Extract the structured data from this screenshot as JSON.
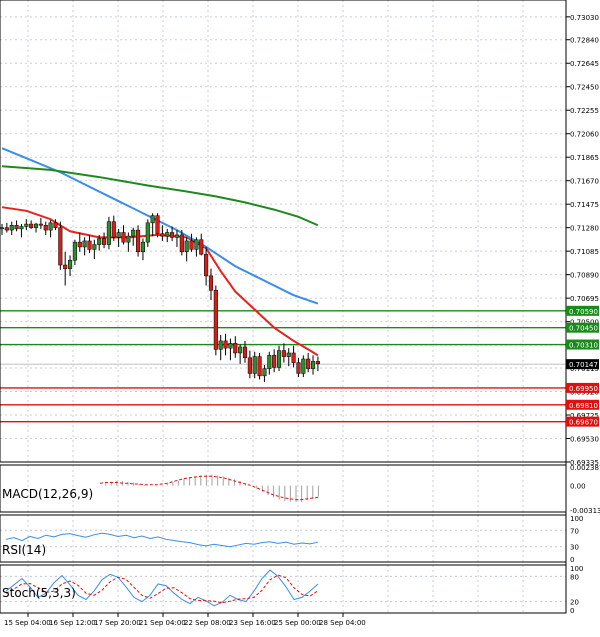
{
  "chart_data": {
    "type": "candlestick",
    "x_ticks": [
      "15 Sep 04:00",
      "16 Sep 12:00",
      "17 Sep 20:00",
      "21 Sep 04:00",
      "22 Sep 08:00",
      "23 Sep 16:00",
      "25 Sep 00:00",
      "28 Sep 04:00"
    ],
    "main": {
      "ylim": [
        0.69335,
        0.7312
      ],
      "y_ticks": [
        "0.73030",
        "0.72840",
        "0.72645",
        "0.72450",
        "0.72255",
        "0.72060",
        "0.71865",
        "0.71670",
        "0.71475",
        "0.71280",
        "0.71085",
        "0.70890",
        "0.70695",
        "0.70500",
        "0.70305",
        "0.70115",
        "0.69920",
        "0.69725",
        "0.69530",
        "0.69335"
      ],
      "current_price": "0.70147",
      "support_levels": [
        "0.69950",
        "0.69810",
        "0.69670"
      ],
      "resistance_levels": [
        "0.70590",
        "0.70450",
        "0.70310"
      ],
      "candles": [
        [
          0.7127,
          0.7131,
          0.7122,
          0.7128
        ],
        [
          0.7128,
          0.7132,
          0.7124,
          0.7126
        ],
        [
          0.7126,
          0.7133,
          0.7122,
          0.713
        ],
        [
          0.713,
          0.7134,
          0.7125,
          0.7127
        ],
        [
          0.7127,
          0.7131,
          0.712,
          0.7129
        ],
        [
          0.7129,
          0.7135,
          0.7126,
          0.7131
        ],
        [
          0.7131,
          0.7134,
          0.7127,
          0.7128
        ],
        [
          0.7128,
          0.7132,
          0.7124,
          0.7131
        ],
        [
          0.7131,
          0.7136,
          0.7127,
          0.713
        ],
        [
          0.713,
          0.7133,
          0.7122,
          0.7126
        ],
        [
          0.7126,
          0.7134,
          0.712,
          0.7132
        ],
        [
          0.7132,
          0.7135,
          0.7126,
          0.7128
        ],
        [
          0.7128,
          0.7133,
          0.7093,
          0.7097
        ],
        [
          0.7097,
          0.7108,
          0.708,
          0.7094
        ],
        [
          0.7094,
          0.7105,
          0.7088,
          0.7101
        ],
        [
          0.7101,
          0.7118,
          0.7097,
          0.7116
        ],
        [
          0.7116,
          0.7124,
          0.7108,
          0.7112
        ],
        [
          0.7112,
          0.712,
          0.7105,
          0.7117
        ],
        [
          0.7117,
          0.7122,
          0.7107,
          0.711
        ],
        [
          0.711,
          0.7118,
          0.7102,
          0.7114
        ],
        [
          0.7114,
          0.7122,
          0.7109,
          0.7119
        ],
        [
          0.7119,
          0.7124,
          0.7111,
          0.7114
        ],
        [
          0.7114,
          0.7137,
          0.711,
          0.7133
        ],
        [
          0.7133,
          0.7138,
          0.7117,
          0.712
        ],
        [
          0.712,
          0.7127,
          0.7112,
          0.7124
        ],
        [
          0.7124,
          0.713,
          0.7114,
          0.7116
        ],
        [
          0.7116,
          0.7124,
          0.7108,
          0.7121
        ],
        [
          0.7121,
          0.7128,
          0.7113,
          0.7126
        ],
        [
          0.7126,
          0.713,
          0.7104,
          0.7108
        ],
        [
          0.7108,
          0.7119,
          0.7101,
          0.7116
        ],
        [
          0.7116,
          0.7135,
          0.7112,
          0.7132
        ],
        [
          0.7132,
          0.714,
          0.7121,
          0.7138
        ],
        [
          0.7138,
          0.714,
          0.712,
          0.7123
        ],
        [
          0.7123,
          0.713,
          0.7117,
          0.7121
        ],
        [
          0.7121,
          0.7127,
          0.7116,
          0.7124
        ],
        [
          0.7124,
          0.7129,
          0.7117,
          0.712
        ],
        [
          0.712,
          0.7126,
          0.7112,
          0.7122
        ],
        [
          0.7122,
          0.7126,
          0.7105,
          0.7108
        ],
        [
          0.7108,
          0.712,
          0.71,
          0.7117
        ],
        [
          0.7117,
          0.7123,
          0.7108,
          0.711
        ],
        [
          0.711,
          0.712,
          0.7104,
          0.7118
        ],
        [
          0.7118,
          0.7123,
          0.7105,
          0.7106
        ],
        [
          0.7106,
          0.7112,
          0.708,
          0.7088
        ],
        [
          0.7088,
          0.7094,
          0.7068,
          0.7076
        ],
        [
          0.7076,
          0.708,
          0.7022,
          0.7027
        ],
        [
          0.7027,
          0.7039,
          0.7018,
          0.7034
        ],
        [
          0.7034,
          0.704,
          0.7022,
          0.7028
        ],
        [
          0.7028,
          0.7036,
          0.7018,
          0.7032
        ],
        [
          0.7032,
          0.7038,
          0.702,
          0.7024
        ],
        [
          0.7024,
          0.7031,
          0.7015,
          0.7029
        ],
        [
          0.7029,
          0.7034,
          0.7016,
          0.702
        ],
        [
          0.702,
          0.7026,
          0.7003,
          0.7007
        ],
        [
          0.7007,
          0.7025,
          0.7003,
          0.7021
        ],
        [
          0.7021,
          0.7024,
          0.7002,
          0.7005
        ],
        [
          0.7005,
          0.7014,
          0.7,
          0.7011
        ],
        [
          0.7011,
          0.7025,
          0.7006,
          0.7022
        ],
        [
          0.7022,
          0.7027,
          0.7008,
          0.7012
        ],
        [
          0.7012,
          0.703,
          0.7009,
          0.7026
        ],
        [
          0.7026,
          0.7032,
          0.7016,
          0.7021
        ],
        [
          0.7021,
          0.7028,
          0.7013,
          0.7024
        ],
        [
          0.7024,
          0.703,
          0.7012,
          0.7016
        ],
        [
          0.7016,
          0.702,
          0.7004,
          0.7007
        ],
        [
          0.7007,
          0.7022,
          0.7004,
          0.7019
        ],
        [
          0.7019,
          0.7024,
          0.7008,
          0.7011
        ],
        [
          0.7011,
          0.7022,
          0.7006,
          0.7017
        ],
        [
          0.7017,
          0.7021,
          0.7009,
          0.7015
        ]
      ],
      "moving_averages": [
        {
          "color": "#e6231e",
          "values": [
            [
              0,
              0.7145
            ],
            [
              5,
              0.7142
            ],
            [
              10,
              0.7135
            ],
            [
              14,
              0.7125
            ],
            [
              20,
              0.712
            ],
            [
              26,
              0.712
            ],
            [
              32,
              0.7122
            ],
            [
              38,
              0.712
            ],
            [
              42,
              0.7111
            ],
            [
              45,
              0.7092
            ],
            [
              48,
              0.7075
            ],
            [
              52,
              0.706
            ],
            [
              56,
              0.7045
            ],
            [
              60,
              0.7034
            ],
            [
              63,
              0.7027
            ],
            [
              65,
              0.7022
            ]
          ]
        },
        {
          "color": "#3a8ee6",
          "values": [
            [
              0,
              0.7194
            ],
            [
              6,
              0.7184
            ],
            [
              12,
              0.7174
            ],
            [
              18,
              0.7162
            ],
            [
              24,
              0.715
            ],
            [
              30,
              0.7138
            ],
            [
              36,
              0.7126
            ],
            [
              42,
              0.7112
            ],
            [
              48,
              0.7096
            ],
            [
              55,
              0.7082
            ],
            [
              60,
              0.7072
            ],
            [
              65,
              0.7065
            ]
          ]
        },
        {
          "color": "#1e8a1e",
          "values": [
            [
              0,
              0.7179
            ],
            [
              10,
              0.7176
            ],
            [
              20,
              0.717
            ],
            [
              30,
              0.7163
            ],
            [
              38,
              0.7158
            ],
            [
              44,
              0.7154
            ],
            [
              50,
              0.7149
            ],
            [
              56,
              0.7143
            ],
            [
              61,
              0.7137
            ],
            [
              65,
              0.713
            ]
          ]
        }
      ]
    },
    "macd": {
      "label": "MACD(12,26,9)",
      "y_ticks": [
        "0.002387",
        "0.00",
        "-0.003135"
      ],
      "ylim": [
        -0.003135,
        0.002387
      ],
      "histogram": [
        0,
        0.0003,
        0.0005,
        0.0006,
        0.0006,
        0.0005,
        0.0004,
        0.0002,
        0.0001,
        0,
        -0.0001,
        0,
        0.0002,
        0.0004,
        0.0006,
        0.0009,
        0.0011,
        0.0012,
        0.0013,
        0.0014,
        0.0014,
        0.0013,
        0.0012,
        0.001,
        0.0008,
        0.0006,
        0.0003,
        0,
        -0.0004,
        -0.0008,
        -0.0012,
        -0.0015,
        -0.0018,
        -0.002,
        -0.0021,
        -0.0021,
        -0.0021,
        -0.0019,
        -0.0017,
        -0.0014
      ],
      "signal": [
        0.0003,
        0.0004,
        0.0004,
        0.0004,
        0.0003,
        0.0003,
        0.0002,
        0.0002,
        0.0001,
        0.0001,
        0.0001,
        0.0002,
        0.0003,
        0.0005,
        0.0007,
        0.0009,
        0.001,
        0.0011,
        0.0012,
        0.0012,
        0.0012,
        0.0011,
        0.001,
        0.0008,
        0.0006,
        0.0004,
        0.0002,
        0,
        -0.0003,
        -0.0006,
        -0.0009,
        -0.0012,
        -0.0014,
        -0.0016,
        -0.0017,
        -0.0018,
        -0.0018,
        -0.0017,
        -0.0016,
        -0.0015
      ]
    },
    "rsi": {
      "label": "RSI(14)",
      "y_ticks": [
        "100",
        "70",
        "30",
        "0"
      ],
      "ylim": [
        0,
        100
      ],
      "values": [
        48,
        52,
        45,
        55,
        50,
        58,
        54,
        60,
        62,
        57,
        53,
        59,
        63,
        60,
        55,
        58,
        52,
        56,
        50,
        54,
        48,
        45,
        42,
        40,
        35,
        32,
        36,
        33,
        30,
        34,
        38,
        36,
        40,
        42,
        38,
        41,
        36,
        39,
        37,
        41
      ]
    },
    "stoch": {
      "label": "Stoch(5,3,3)",
      "y_ticks": [
        "100",
        "80",
        "20",
        "0"
      ],
      "ylim": [
        0,
        100
      ],
      "k": [
        45,
        60,
        75,
        55,
        30,
        40,
        65,
        82,
        60,
        35,
        25,
        45,
        72,
        85,
        78,
        55,
        30,
        20,
        35,
        62,
        58,
        40,
        25,
        15,
        30,
        22,
        10,
        18,
        35,
        25,
        20,
        45,
        75,
        95,
        80,
        55,
        25,
        30,
        45,
        62
      ],
      "d": [
        40,
        50,
        62,
        63,
        53,
        42,
        45,
        62,
        69,
        59,
        40,
        35,
        47,
        67,
        78,
        73,
        54,
        35,
        28,
        39,
        52,
        53,
        41,
        27,
        23,
        22,
        21,
        17,
        21,
        26,
        27,
        30,
        47,
        72,
        83,
        77,
        53,
        37,
        33,
        46
      ]
    }
  }
}
